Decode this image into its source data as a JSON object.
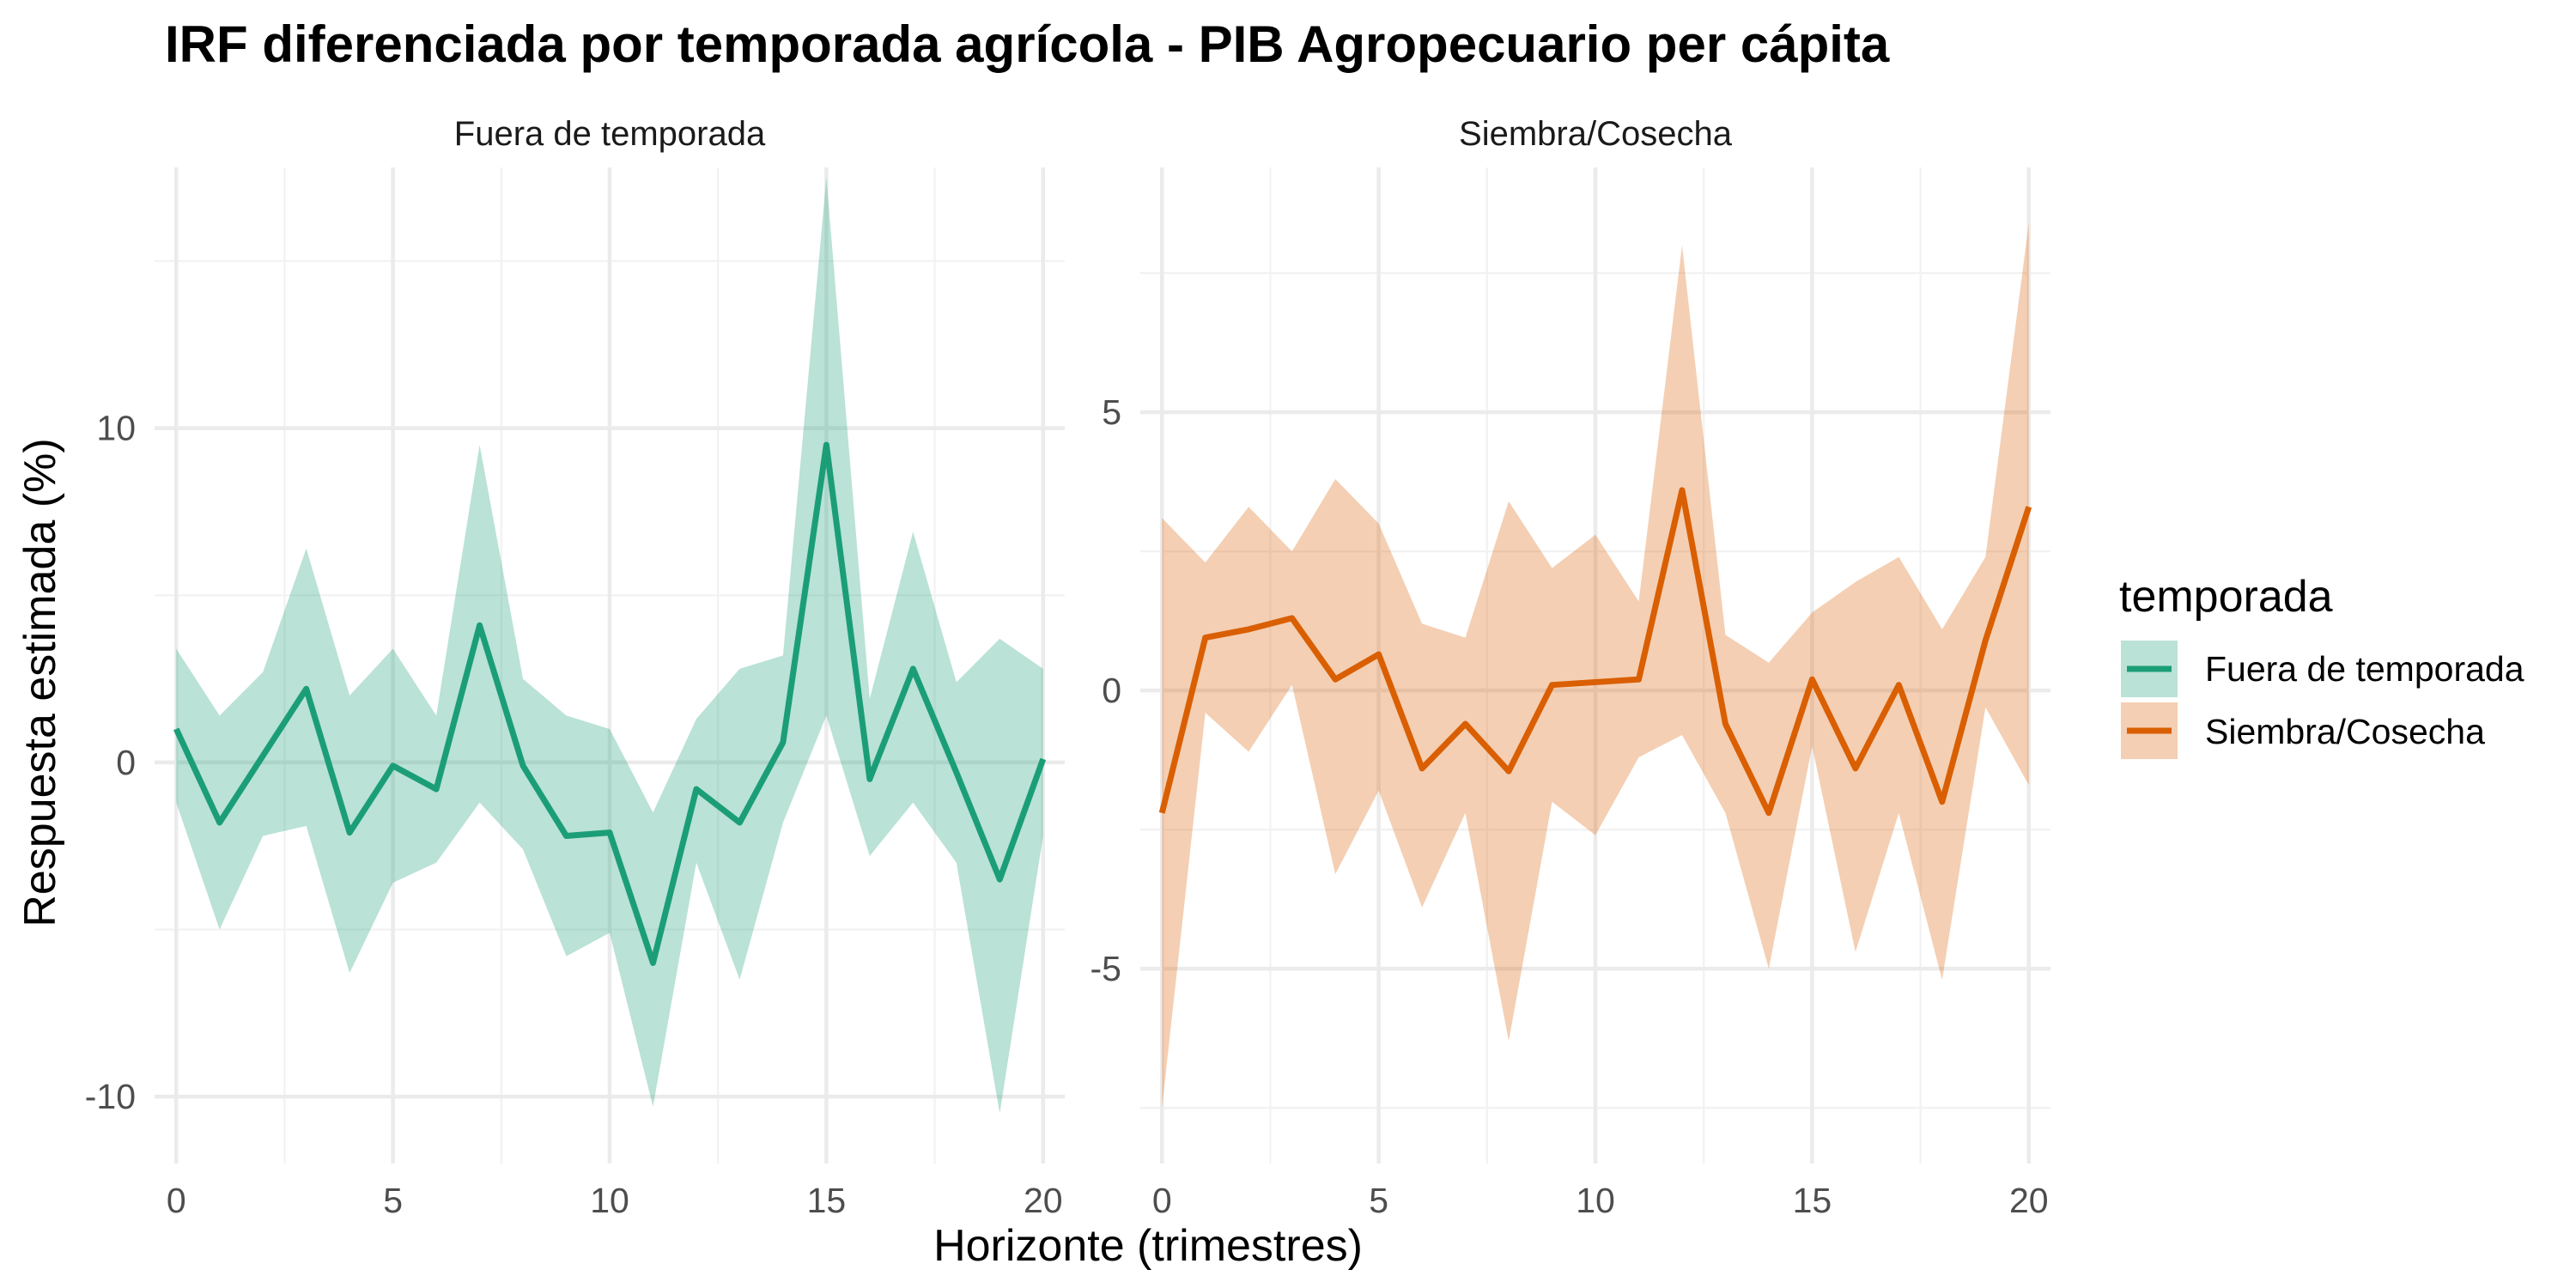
{
  "chart_data": {
    "type": "line",
    "title": "IRF diferenciada por temporada agrícola - PIB Agropecuario per cápita",
    "xlabel": "Horizonte (trimestres)",
    "ylabel": "Respuesta estimada (%)",
    "legend": {
      "title": "temporada",
      "position": "right",
      "entries": [
        "Fuera de temporada",
        "Siembra/Cosecha"
      ]
    },
    "grid": true,
    "colors": {
      "Fuera de temporada": "#1b9e77",
      "Siembra/Cosecha": "#d95f02",
      "ribbon_alpha": 0.3
    },
    "facets": [
      {
        "label": "Fuera de temporada",
        "series_name": "Fuera de temporada",
        "xlim": [
          -0.5,
          20.5
        ],
        "ylim": [
          -12,
          17.8
        ],
        "x_ticks": [
          0,
          5,
          10,
          15,
          20
        ],
        "y_ticks": [
          -10,
          0,
          10
        ],
        "x": [
          0,
          1,
          2,
          3,
          4,
          5,
          6,
          7,
          8,
          9,
          10,
          11,
          12,
          13,
          14,
          15,
          16,
          17,
          18,
          19,
          20
        ],
        "estimate": [
          1.0,
          -1.8,
          0.2,
          2.2,
          -2.1,
          -0.1,
          -0.8,
          4.1,
          -0.1,
          -2.2,
          -2.1,
          -6.0,
          -0.8,
          -1.8,
          0.6,
          9.5,
          -0.5,
          2.8,
          -0.3,
          -3.5,
          0.1
        ],
        "lower": [
          -1.2,
          -5.0,
          -2.2,
          -1.9,
          -6.3,
          -3.6,
          -3.0,
          -1.2,
          -2.6,
          -5.8,
          -5.1,
          -10.3,
          -3.0,
          -6.5,
          -1.8,
          1.4,
          -2.8,
          -1.2,
          -3.0,
          -10.5,
          -2.2
        ],
        "upper": [
          3.4,
          1.4,
          2.7,
          6.4,
          2.0,
          3.4,
          1.4,
          9.5,
          2.5,
          1.4,
          1.0,
          -1.5,
          1.3,
          2.8,
          3.2,
          17.5,
          1.9,
          6.9,
          2.4,
          3.7,
          2.8
        ]
      },
      {
        "label": "Siembra/Cosecha",
        "series_name": "Siembra/Cosecha",
        "xlim": [
          -0.5,
          20.5
        ],
        "ylim": [
          -8.5,
          9.4
        ],
        "x_ticks": [
          0,
          5,
          10,
          15,
          20
        ],
        "y_ticks": [
          -5,
          0,
          5
        ],
        "x": [
          0,
          1,
          2,
          3,
          4,
          5,
          6,
          7,
          8,
          9,
          10,
          11,
          12,
          13,
          14,
          15,
          16,
          17,
          18,
          19,
          20
        ],
        "estimate": [
          -2.2,
          0.95,
          1.1,
          1.3,
          0.2,
          0.65,
          -1.4,
          -0.6,
          -1.45,
          0.1,
          0.15,
          0.2,
          3.6,
          -0.6,
          -2.2,
          0.2,
          -1.4,
          0.1,
          -2.0,
          0.9,
          3.3
        ],
        "lower": [
          -7.5,
          -0.4,
          -1.1,
          0.1,
          -3.3,
          -1.8,
          -3.9,
          -2.2,
          -6.3,
          -2.0,
          -2.6,
          -1.2,
          -0.8,
          -2.2,
          -5.0,
          -1.0,
          -4.7,
          -2.2,
          -5.2,
          -0.3,
          -1.7
        ],
        "upper": [
          3.1,
          2.3,
          3.3,
          2.5,
          3.8,
          3.0,
          1.2,
          0.95,
          3.4,
          2.2,
          2.8,
          1.6,
          8.0,
          1.0,
          0.5,
          1.4,
          1.95,
          2.4,
          1.1,
          2.4,
          8.4
        ]
      }
    ]
  }
}
